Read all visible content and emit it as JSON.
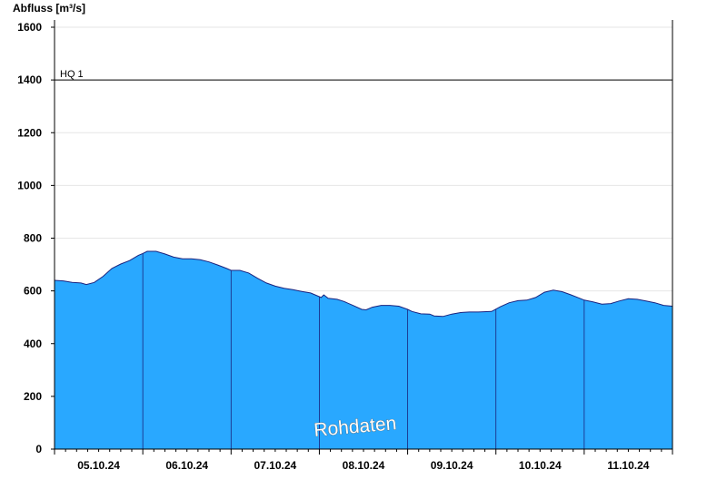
{
  "chart_data": {
    "type": "area",
    "ylabel": "Abfluss [m³/s]",
    "ylim": [
      0,
      1650
    ],
    "yticks": [
      0,
      200,
      400,
      600,
      800,
      1000,
      1200,
      1400,
      1600
    ],
    "xlim": [
      0,
      7
    ],
    "x_day_labels": [
      "05.10.24",
      "06.10.24",
      "07.10.24",
      "08.10.24",
      "09.10.24",
      "10.10.24",
      "11.10.24"
    ],
    "grid": true,
    "fill_color": "#29a8ff",
    "line_color": "#1a237e",
    "reference_lines": [
      {
        "label": "HQ 1",
        "value": 1400
      }
    ],
    "watermark": "Rohdaten",
    "series": [
      {
        "values": [
          [
            0.0,
            640
          ],
          [
            0.1,
            638
          ],
          [
            0.2,
            632
          ],
          [
            0.3,
            630
          ],
          [
            0.36,
            624
          ],
          [
            0.45,
            632
          ],
          [
            0.55,
            655
          ],
          [
            0.65,
            685
          ],
          [
            0.75,
            702
          ],
          [
            0.85,
            715
          ],
          [
            0.95,
            735
          ],
          [
            1.0,
            742
          ],
          [
            1.05,
            750
          ],
          [
            1.15,
            750
          ],
          [
            1.25,
            740
          ],
          [
            1.35,
            728
          ],
          [
            1.45,
            722
          ],
          [
            1.55,
            722
          ],
          [
            1.65,
            718
          ],
          [
            1.75,
            710
          ],
          [
            1.85,
            698
          ],
          [
            1.95,
            685
          ],
          [
            2.0,
            678
          ],
          [
            2.1,
            678
          ],
          [
            2.2,
            668
          ],
          [
            2.3,
            648
          ],
          [
            2.4,
            630
          ],
          [
            2.5,
            618
          ],
          [
            2.6,
            610
          ],
          [
            2.7,
            605
          ],
          [
            2.8,
            598
          ],
          [
            2.9,
            592
          ],
          [
            3.0,
            578
          ],
          [
            3.02,
            575
          ],
          [
            3.05,
            585
          ],
          [
            3.1,
            572
          ],
          [
            3.2,
            568
          ],
          [
            3.28,
            560
          ],
          [
            3.38,
            545
          ],
          [
            3.48,
            530
          ],
          [
            3.53,
            528
          ],
          [
            3.6,
            538
          ],
          [
            3.7,
            545
          ],
          [
            3.8,
            545
          ],
          [
            3.9,
            542
          ],
          [
            4.0,
            530
          ],
          [
            4.05,
            522
          ],
          [
            4.15,
            513
          ],
          [
            4.25,
            512
          ],
          [
            4.3,
            505
          ],
          [
            4.4,
            503
          ],
          [
            4.5,
            512
          ],
          [
            4.6,
            518
          ],
          [
            4.7,
            520
          ],
          [
            4.8,
            520
          ],
          [
            4.95,
            522
          ],
          [
            5.05,
            540
          ],
          [
            5.15,
            555
          ],
          [
            5.25,
            563
          ],
          [
            5.35,
            565
          ],
          [
            5.45,
            575
          ],
          [
            5.55,
            595
          ],
          [
            5.65,
            603
          ],
          [
            5.75,
            597
          ],
          [
            5.85,
            585
          ],
          [
            5.95,
            572
          ],
          [
            6.0,
            565
          ],
          [
            6.1,
            558
          ],
          [
            6.2,
            550
          ],
          [
            6.3,
            552
          ],
          [
            6.4,
            562
          ],
          [
            6.5,
            570
          ],
          [
            6.6,
            568
          ],
          [
            6.7,
            562
          ],
          [
            6.8,
            555
          ],
          [
            6.9,
            545
          ],
          [
            7.0,
            542
          ]
        ]
      }
    ]
  }
}
